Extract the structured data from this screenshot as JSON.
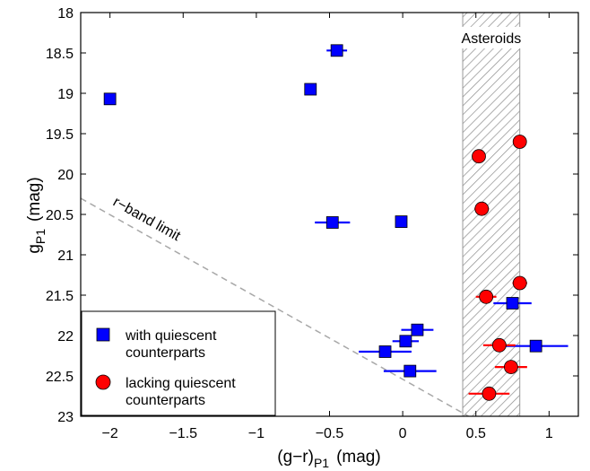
{
  "chart_data": {
    "type": "scatter",
    "xlabel_main": "(g−r)",
    "xlabel_sub": "P1",
    "xlabel_unit": "(mag)",
    "ylabel_main": "g",
    "ylabel_sub": "P1",
    "ylabel_unit": "(mag)",
    "xlim": [
      -2.2,
      1.2
    ],
    "ylim": [
      23,
      18
    ],
    "y_inverted": true,
    "grid": false,
    "xticks": [
      -2,
      -1.5,
      -1,
      -0.5,
      0,
      0.5,
      1
    ],
    "xtick_labels": [
      "−2",
      "−1.5",
      "−1",
      "−0.5",
      "0",
      "0.5",
      "1"
    ],
    "yticks": [
      18,
      18.5,
      19,
      19.5,
      20,
      20.5,
      21,
      21.5,
      22,
      22.5,
      23
    ],
    "ytick_labels": [
      "18",
      "18.5",
      "19",
      "19.5",
      "20",
      "20.5",
      "21",
      "21.5",
      "22",
      "22.5",
      "23"
    ],
    "asteroid_band": {
      "x_range": [
        0.41,
        0.8
      ],
      "label": "Asteroids"
    },
    "limit_line": {
      "label": "r−band limit",
      "points": [
        [
          -2.2,
          20.3
        ],
        [
          0.45,
          23.0
        ]
      ]
    },
    "legend": {
      "placement": "bottom-left",
      "entries": [
        {
          "series": 0,
          "lines": [
            "with quiescent",
            "counterparts"
          ]
        },
        {
          "series": 1,
          "lines": [
            "lacking quiescent",
            "counterparts"
          ]
        }
      ]
    },
    "series": [
      {
        "marker": "square",
        "color": "#0000ff",
        "points": [
          {
            "x": -2.0,
            "y": 19.07,
            "xerr": 0.03
          },
          {
            "x": -0.45,
            "y": 18.47,
            "xerr": 0.07
          },
          {
            "x": -0.63,
            "y": 18.95,
            "xerr": 0.0
          },
          {
            "x": -0.48,
            "y": 20.6,
            "xerr": 0.12
          },
          {
            "x": -0.01,
            "y": 20.59,
            "xerr": 0.0
          },
          {
            "x": 0.1,
            "y": 21.93,
            "xerr": 0.11
          },
          {
            "x": 0.02,
            "y": 22.07,
            "xerr": 0.09
          },
          {
            "x": -0.12,
            "y": 22.2,
            "xerr": 0.18
          },
          {
            "x": 0.05,
            "y": 22.44,
            "xerr": 0.18
          },
          {
            "x": 0.75,
            "y": 21.6,
            "xerr": 0.13
          },
          {
            "x": 0.91,
            "y": 22.13,
            "xerr": 0.22
          }
        ]
      },
      {
        "marker": "circle",
        "color": "#ff0000",
        "points": [
          {
            "x": 0.8,
            "y": 19.6,
            "xerr": 0.0
          },
          {
            "x": 0.52,
            "y": 19.78,
            "xerr": 0.0
          },
          {
            "x": 0.54,
            "y": 20.43,
            "xerr": 0.05
          },
          {
            "x": 0.8,
            "y": 21.35,
            "xerr": 0.05
          },
          {
            "x": 0.57,
            "y": 21.52,
            "xerr": 0.07
          },
          {
            "x": 0.66,
            "y": 22.12,
            "xerr": 0.11
          },
          {
            "x": 0.74,
            "y": 22.39,
            "xerr": 0.11
          },
          {
            "x": 0.59,
            "y": 22.72,
            "xerr": 0.14
          }
        ]
      }
    ]
  }
}
